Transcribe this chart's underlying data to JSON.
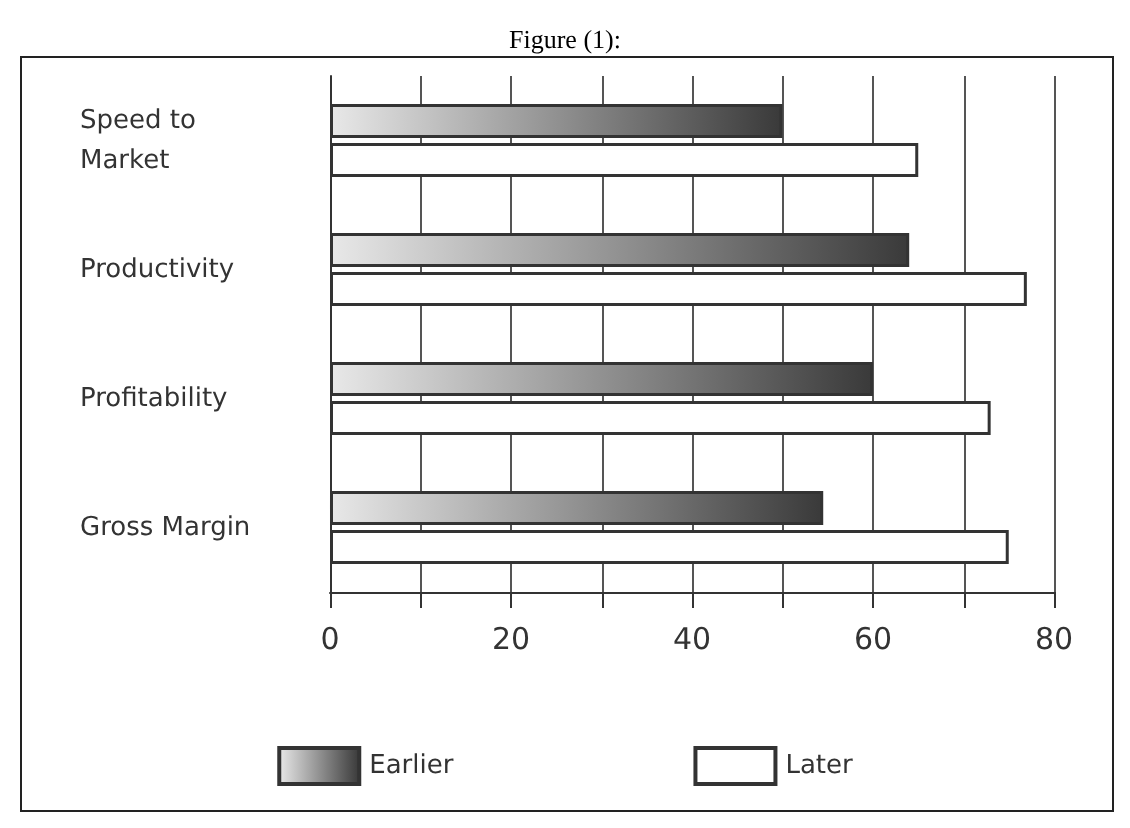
{
  "chart_data": {
    "type": "bar",
    "orientation": "horizontal",
    "title": "Figure (1):",
    "categories": [
      "Speed to\nMarket",
      "Productivity",
      "Profitability",
      "Gross Margin"
    ],
    "series": [
      {
        "name": "Earlier",
        "color": "#3a3a3a",
        "values": [
          50,
          64,
          60,
          54.5
        ]
      },
      {
        "name": "Later",
        "color": "#ffffff",
        "values": [
          65,
          77,
          73,
          75
        ]
      }
    ],
    "xlim": [
      0,
      80
    ],
    "xticks": [
      0,
      {
        "value": 10,
        "label": null
      },
      20,
      {
        "value": 30,
        "label": null
      },
      40,
      {
        "value": 50,
        "label": null
      },
      60,
      {
        "value": 70,
        "label": null
      },
      80
    ],
    "grid": "x",
    "legend": "bottom"
  }
}
